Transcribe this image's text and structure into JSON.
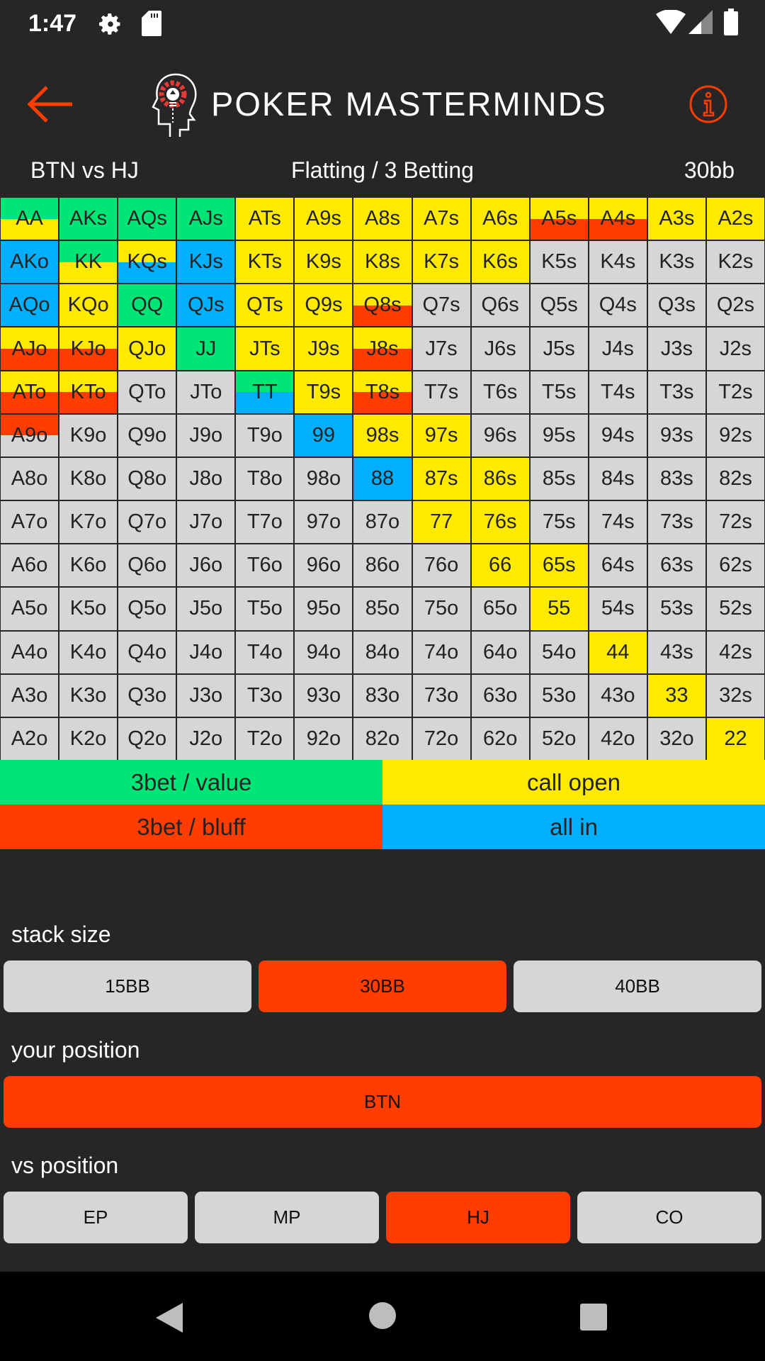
{
  "status_bar": {
    "time": "1:47",
    "icons": [
      "gear-icon",
      "sd-card-icon",
      "wifi-icon",
      "signal-icon",
      "battery-icon"
    ]
  },
  "header": {
    "brand": "POKER MASTERMINDS",
    "back_icon": "arrow-left-icon",
    "info_icon": "info-icon",
    "accent": "#ff3d00"
  },
  "title_row": {
    "matchup": "BTN vs HJ",
    "mode": "Flatting / 3 Betting",
    "stack": "30bb"
  },
  "colors": {
    "value": "#00e676",
    "call": "#ffea00",
    "bluff": "#ff3d00",
    "allin": "#00b0ff",
    "none": "#d6d6d6"
  },
  "grid": [
    [
      {
        "h": "AA",
        "c": [
          "value",
          "call"
        ]
      },
      {
        "h": "AKs",
        "c": [
          "value"
        ]
      },
      {
        "h": "AQs",
        "c": [
          "value"
        ]
      },
      {
        "h": "AJs",
        "c": [
          "value"
        ]
      },
      {
        "h": "ATs",
        "c": [
          "call"
        ]
      },
      {
        "h": "A9s",
        "c": [
          "call"
        ]
      },
      {
        "h": "A8s",
        "c": [
          "call"
        ]
      },
      {
        "h": "A7s",
        "c": [
          "call"
        ]
      },
      {
        "h": "A6s",
        "c": [
          "call"
        ]
      },
      {
        "h": "A5s",
        "c": [
          "call",
          "bluff"
        ]
      },
      {
        "h": "A4s",
        "c": [
          "call",
          "bluff"
        ]
      },
      {
        "h": "A3s",
        "c": [
          "call"
        ]
      },
      {
        "h": "A2s",
        "c": [
          "call"
        ]
      }
    ],
    [
      {
        "h": "AKo",
        "c": [
          "allin"
        ]
      },
      {
        "h": "KK",
        "c": [
          "value",
          "call"
        ]
      },
      {
        "h": "KQs",
        "c": [
          "call",
          "allin"
        ]
      },
      {
        "h": "KJs",
        "c": [
          "allin"
        ]
      },
      {
        "h": "KTs",
        "c": [
          "call"
        ]
      },
      {
        "h": "K9s",
        "c": [
          "call"
        ]
      },
      {
        "h": "K8s",
        "c": [
          "call"
        ]
      },
      {
        "h": "K7s",
        "c": [
          "call"
        ]
      },
      {
        "h": "K6s",
        "c": [
          "call"
        ]
      },
      {
        "h": "K5s",
        "c": [
          "none"
        ]
      },
      {
        "h": "K4s",
        "c": [
          "none"
        ]
      },
      {
        "h": "K3s",
        "c": [
          "none"
        ]
      },
      {
        "h": "K2s",
        "c": [
          "none"
        ]
      }
    ],
    [
      {
        "h": "AQo",
        "c": [
          "allin"
        ]
      },
      {
        "h": "KQo",
        "c": [
          "call"
        ]
      },
      {
        "h": "QQ",
        "c": [
          "value"
        ]
      },
      {
        "h": "QJs",
        "c": [
          "allin"
        ]
      },
      {
        "h": "QTs",
        "c": [
          "call"
        ]
      },
      {
        "h": "Q9s",
        "c": [
          "call"
        ]
      },
      {
        "h": "Q8s",
        "c": [
          "call",
          "bluff"
        ]
      },
      {
        "h": "Q7s",
        "c": [
          "none"
        ]
      },
      {
        "h": "Q6s",
        "c": [
          "none"
        ]
      },
      {
        "h": "Q5s",
        "c": [
          "none"
        ]
      },
      {
        "h": "Q4s",
        "c": [
          "none"
        ]
      },
      {
        "h": "Q3s",
        "c": [
          "none"
        ]
      },
      {
        "h": "Q2s",
        "c": [
          "none"
        ]
      }
    ],
    [
      {
        "h": "AJo",
        "c": [
          "call",
          "bluff"
        ]
      },
      {
        "h": "KJo",
        "c": [
          "call",
          "bluff"
        ]
      },
      {
        "h": "QJo",
        "c": [
          "call"
        ]
      },
      {
        "h": "JJ",
        "c": [
          "value"
        ]
      },
      {
        "h": "JTs",
        "c": [
          "call"
        ]
      },
      {
        "h": "J9s",
        "c": [
          "call"
        ]
      },
      {
        "h": "J8s",
        "c": [
          "call",
          "bluff"
        ]
      },
      {
        "h": "J7s",
        "c": [
          "none"
        ]
      },
      {
        "h": "J6s",
        "c": [
          "none"
        ]
      },
      {
        "h": "J5s",
        "c": [
          "none"
        ]
      },
      {
        "h": "J4s",
        "c": [
          "none"
        ]
      },
      {
        "h": "J3s",
        "c": [
          "none"
        ]
      },
      {
        "h": "J2s",
        "c": [
          "none"
        ]
      }
    ],
    [
      {
        "h": "ATo",
        "c": [
          "call",
          "bluff"
        ]
      },
      {
        "h": "KTo",
        "c": [
          "call",
          "bluff"
        ]
      },
      {
        "h": "QTo",
        "c": [
          "none"
        ]
      },
      {
        "h": "JTo",
        "c": [
          "none"
        ]
      },
      {
        "h": "TT",
        "c": [
          "value",
          "allin"
        ]
      },
      {
        "h": "T9s",
        "c": [
          "call"
        ]
      },
      {
        "h": "T8s",
        "c": [
          "call",
          "bluff"
        ]
      },
      {
        "h": "T7s",
        "c": [
          "none"
        ]
      },
      {
        "h": "T6s",
        "c": [
          "none"
        ]
      },
      {
        "h": "T5s",
        "c": [
          "none"
        ]
      },
      {
        "h": "T4s",
        "c": [
          "none"
        ]
      },
      {
        "h": "T3s",
        "c": [
          "none"
        ]
      },
      {
        "h": "T2s",
        "c": [
          "none"
        ]
      }
    ],
    [
      {
        "h": "A9o",
        "c": [
          "bluff",
          "none"
        ]
      },
      {
        "h": "K9o",
        "c": [
          "none"
        ]
      },
      {
        "h": "Q9o",
        "c": [
          "none"
        ]
      },
      {
        "h": "J9o",
        "c": [
          "none"
        ]
      },
      {
        "h": "T9o",
        "c": [
          "none"
        ]
      },
      {
        "h": "99",
        "c": [
          "allin"
        ]
      },
      {
        "h": "98s",
        "c": [
          "call"
        ]
      },
      {
        "h": "97s",
        "c": [
          "call"
        ]
      },
      {
        "h": "96s",
        "c": [
          "none"
        ]
      },
      {
        "h": "95s",
        "c": [
          "none"
        ]
      },
      {
        "h": "94s",
        "c": [
          "none"
        ]
      },
      {
        "h": "93s",
        "c": [
          "none"
        ]
      },
      {
        "h": "92s",
        "c": [
          "none"
        ]
      }
    ],
    [
      {
        "h": "A8o",
        "c": [
          "none"
        ]
      },
      {
        "h": "K8o",
        "c": [
          "none"
        ]
      },
      {
        "h": "Q8o",
        "c": [
          "none"
        ]
      },
      {
        "h": "J8o",
        "c": [
          "none"
        ]
      },
      {
        "h": "T8o",
        "c": [
          "none"
        ]
      },
      {
        "h": "98o",
        "c": [
          "none"
        ]
      },
      {
        "h": "88",
        "c": [
          "allin"
        ]
      },
      {
        "h": "87s",
        "c": [
          "call"
        ]
      },
      {
        "h": "86s",
        "c": [
          "call"
        ]
      },
      {
        "h": "85s",
        "c": [
          "none"
        ]
      },
      {
        "h": "84s",
        "c": [
          "none"
        ]
      },
      {
        "h": "83s",
        "c": [
          "none"
        ]
      },
      {
        "h": "82s",
        "c": [
          "none"
        ]
      }
    ],
    [
      {
        "h": "A7o",
        "c": [
          "none"
        ]
      },
      {
        "h": "K7o",
        "c": [
          "none"
        ]
      },
      {
        "h": "Q7o",
        "c": [
          "none"
        ]
      },
      {
        "h": "J7o",
        "c": [
          "none"
        ]
      },
      {
        "h": "T7o",
        "c": [
          "none"
        ]
      },
      {
        "h": "97o",
        "c": [
          "none"
        ]
      },
      {
        "h": "87o",
        "c": [
          "none"
        ]
      },
      {
        "h": "77",
        "c": [
          "call"
        ]
      },
      {
        "h": "76s",
        "c": [
          "call"
        ]
      },
      {
        "h": "75s",
        "c": [
          "none"
        ]
      },
      {
        "h": "74s",
        "c": [
          "none"
        ]
      },
      {
        "h": "73s",
        "c": [
          "none"
        ]
      },
      {
        "h": "72s",
        "c": [
          "none"
        ]
      }
    ],
    [
      {
        "h": "A6o",
        "c": [
          "none"
        ]
      },
      {
        "h": "K6o",
        "c": [
          "none"
        ]
      },
      {
        "h": "Q6o",
        "c": [
          "none"
        ]
      },
      {
        "h": "J6o",
        "c": [
          "none"
        ]
      },
      {
        "h": "T6o",
        "c": [
          "none"
        ]
      },
      {
        "h": "96o",
        "c": [
          "none"
        ]
      },
      {
        "h": "86o",
        "c": [
          "none"
        ]
      },
      {
        "h": "76o",
        "c": [
          "none"
        ]
      },
      {
        "h": "66",
        "c": [
          "call"
        ]
      },
      {
        "h": "65s",
        "c": [
          "call"
        ]
      },
      {
        "h": "64s",
        "c": [
          "none"
        ]
      },
      {
        "h": "63s",
        "c": [
          "none"
        ]
      },
      {
        "h": "62s",
        "c": [
          "none"
        ]
      }
    ],
    [
      {
        "h": "A5o",
        "c": [
          "none"
        ]
      },
      {
        "h": "K5o",
        "c": [
          "none"
        ]
      },
      {
        "h": "Q5o",
        "c": [
          "none"
        ]
      },
      {
        "h": "J5o",
        "c": [
          "none"
        ]
      },
      {
        "h": "T5o",
        "c": [
          "none"
        ]
      },
      {
        "h": "95o",
        "c": [
          "none"
        ]
      },
      {
        "h": "85o",
        "c": [
          "none"
        ]
      },
      {
        "h": "75o",
        "c": [
          "none"
        ]
      },
      {
        "h": "65o",
        "c": [
          "none"
        ]
      },
      {
        "h": "55",
        "c": [
          "call"
        ]
      },
      {
        "h": "54s",
        "c": [
          "none"
        ]
      },
      {
        "h": "53s",
        "c": [
          "none"
        ]
      },
      {
        "h": "52s",
        "c": [
          "none"
        ]
      }
    ],
    [
      {
        "h": "A4o",
        "c": [
          "none"
        ]
      },
      {
        "h": "K4o",
        "c": [
          "none"
        ]
      },
      {
        "h": "Q4o",
        "c": [
          "none"
        ]
      },
      {
        "h": "J4o",
        "c": [
          "none"
        ]
      },
      {
        "h": "T4o",
        "c": [
          "none"
        ]
      },
      {
        "h": "94o",
        "c": [
          "none"
        ]
      },
      {
        "h": "84o",
        "c": [
          "none"
        ]
      },
      {
        "h": "74o",
        "c": [
          "none"
        ]
      },
      {
        "h": "64o",
        "c": [
          "none"
        ]
      },
      {
        "h": "54o",
        "c": [
          "none"
        ]
      },
      {
        "h": "44",
        "c": [
          "call"
        ]
      },
      {
        "h": "43s",
        "c": [
          "none"
        ]
      },
      {
        "h": "42s",
        "c": [
          "none"
        ]
      }
    ],
    [
      {
        "h": "A3o",
        "c": [
          "none"
        ]
      },
      {
        "h": "K3o",
        "c": [
          "none"
        ]
      },
      {
        "h": "Q3o",
        "c": [
          "none"
        ]
      },
      {
        "h": "J3o",
        "c": [
          "none"
        ]
      },
      {
        "h": "T3o",
        "c": [
          "none"
        ]
      },
      {
        "h": "93o",
        "c": [
          "none"
        ]
      },
      {
        "h": "83o",
        "c": [
          "none"
        ]
      },
      {
        "h": "73o",
        "c": [
          "none"
        ]
      },
      {
        "h": "63o",
        "c": [
          "none"
        ]
      },
      {
        "h": "53o",
        "c": [
          "none"
        ]
      },
      {
        "h": "43o",
        "c": [
          "none"
        ]
      },
      {
        "h": "33",
        "c": [
          "call"
        ]
      },
      {
        "h": "32s",
        "c": [
          "none"
        ]
      }
    ],
    [
      {
        "h": "A2o",
        "c": [
          "none"
        ]
      },
      {
        "h": "K2o",
        "c": [
          "none"
        ]
      },
      {
        "h": "Q2o",
        "c": [
          "none"
        ]
      },
      {
        "h": "J2o",
        "c": [
          "none"
        ]
      },
      {
        "h": "T2o",
        "c": [
          "none"
        ]
      },
      {
        "h": "92o",
        "c": [
          "none"
        ]
      },
      {
        "h": "82o",
        "c": [
          "none"
        ]
      },
      {
        "h": "72o",
        "c": [
          "none"
        ]
      },
      {
        "h": "62o",
        "c": [
          "none"
        ]
      },
      {
        "h": "52o",
        "c": [
          "none"
        ]
      },
      {
        "h": "42o",
        "c": [
          "none"
        ]
      },
      {
        "h": "32o",
        "c": [
          "none"
        ]
      },
      {
        "h": "22",
        "c": [
          "call"
        ]
      }
    ]
  ],
  "legend": [
    {
      "key": "value",
      "label": "3bet / value"
    },
    {
      "key": "call",
      "label": "call open"
    },
    {
      "key": "bluff",
      "label": "3bet / bluff"
    },
    {
      "key": "allin",
      "label": "all in"
    }
  ],
  "controls": {
    "stack_label": "stack size",
    "stack_options": [
      {
        "label": "15BB",
        "selected": false
      },
      {
        "label": "30BB",
        "selected": true
      },
      {
        "label": "40BB",
        "selected": false
      }
    ],
    "position_label": "your position",
    "position_options": [
      {
        "label": "BTN",
        "selected": true
      }
    ],
    "vs_label": "vs position",
    "vs_options": [
      {
        "label": "EP",
        "selected": false
      },
      {
        "label": "MP",
        "selected": false
      },
      {
        "label": "HJ",
        "selected": true
      },
      {
        "label": "CO",
        "selected": false
      }
    ]
  },
  "nav_bar": {
    "icons": [
      "back-triangle-icon",
      "home-circle-icon",
      "recents-square-icon"
    ]
  }
}
